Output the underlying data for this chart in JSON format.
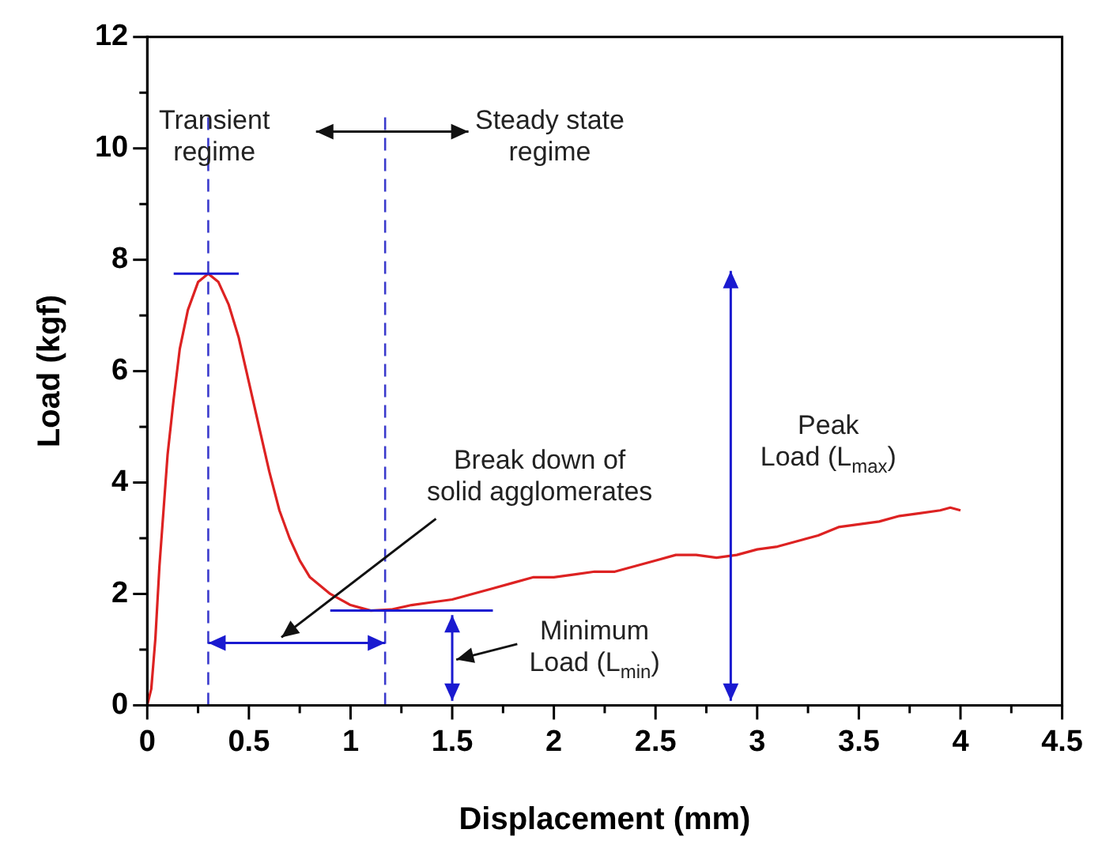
{
  "chart_data": {
    "type": "line",
    "xlabel": "Displacement (mm)",
    "ylabel": "Load (kgf)",
    "xlim": [
      0,
      4.5
    ],
    "xticks": [
      0,
      {
        "value": 0.25,
        "label": null
      },
      0.5,
      {
        "value": 0.75,
        "label": null
      },
      1,
      {
        "value": 1.25,
        "label": null
      },
      1.5,
      {
        "value": 1.75,
        "label": null
      },
      2,
      {
        "value": 2.25,
        "label": null
      },
      2.5,
      {
        "value": 2.75,
        "label": null
      },
      3,
      {
        "value": 3.25,
        "label": null
      },
      3.5,
      {
        "value": 3.75,
        "label": null
      },
      4,
      {
        "value": 4.25,
        "label": null
      },
      4.5
    ],
    "ylim": [
      0,
      12
    ],
    "yticks": [
      0,
      {
        "value": 1,
        "label": null
      },
      2,
      {
        "value": 3,
        "label": null
      },
      4,
      {
        "value": 5,
        "label": null
      },
      6,
      {
        "value": 7,
        "label": null
      },
      8,
      {
        "value": 9,
        "label": null
      },
      10,
      {
        "value": 11,
        "label": null
      },
      12
    ],
    "grid": false,
    "legend": false,
    "marker": "none",
    "line_style": "solid",
    "series": [
      {
        "color": "#dd2222",
        "x": [
          0,
          0.02,
          0.04,
          0.06,
          0.08,
          0.1,
          0.13,
          0.16,
          0.2,
          0.25,
          0.3,
          0.35,
          0.4,
          0.45,
          0.5,
          0.55,
          0.6,
          0.65,
          0.7,
          0.75,
          0.8,
          0.9,
          1.0,
          1.05,
          1.1,
          1.2,
          1.3,
          1.4,
          1.5,
          1.6,
          1.7,
          1.8,
          1.9,
          2.0,
          2.1,
          2.2,
          2.3,
          2.4,
          2.5,
          2.6,
          2.7,
          2.8,
          2.9,
          3.0,
          3.1,
          3.2,
          3.3,
          3.4,
          3.5,
          3.6,
          3.7,
          3.8,
          3.9,
          3.95,
          4.0
        ],
        "values": [
          0,
          0.3,
          1.2,
          2.5,
          3.5,
          4.5,
          5.5,
          6.4,
          7.1,
          7.6,
          7.75,
          7.6,
          7.2,
          6.6,
          5.8,
          5.0,
          4.2,
          3.5,
          3.0,
          2.6,
          2.3,
          2.0,
          1.8,
          1.75,
          1.7,
          1.72,
          1.8,
          1.85,
          1.9,
          2.0,
          2.1,
          2.2,
          2.3,
          2.3,
          2.35,
          2.4,
          2.4,
          2.5,
          2.6,
          2.7,
          2.7,
          2.65,
          2.7,
          2.8,
          2.85,
          2.95,
          3.05,
          3.2,
          3.25,
          3.3,
          3.4,
          3.45,
          3.5,
          3.55,
          3.5
        ]
      }
    ],
    "ref_lines": [
      {
        "axis": "x",
        "value": 0.3,
        "color": "#3a3acc",
        "line_style": "dashed"
      },
      {
        "axis": "x",
        "value": 1.17,
        "color": "#3a3acc",
        "line_style": "dashed"
      }
    ],
    "annotations": [
      "Transient\nregime",
      "Steady state\nregime",
      "Break down of\nsolid agglomerates",
      "Peak\nLoad (L$_{max}$)",
      "Minimum\nLoad (L$_{min}$)"
    ]
  }
}
